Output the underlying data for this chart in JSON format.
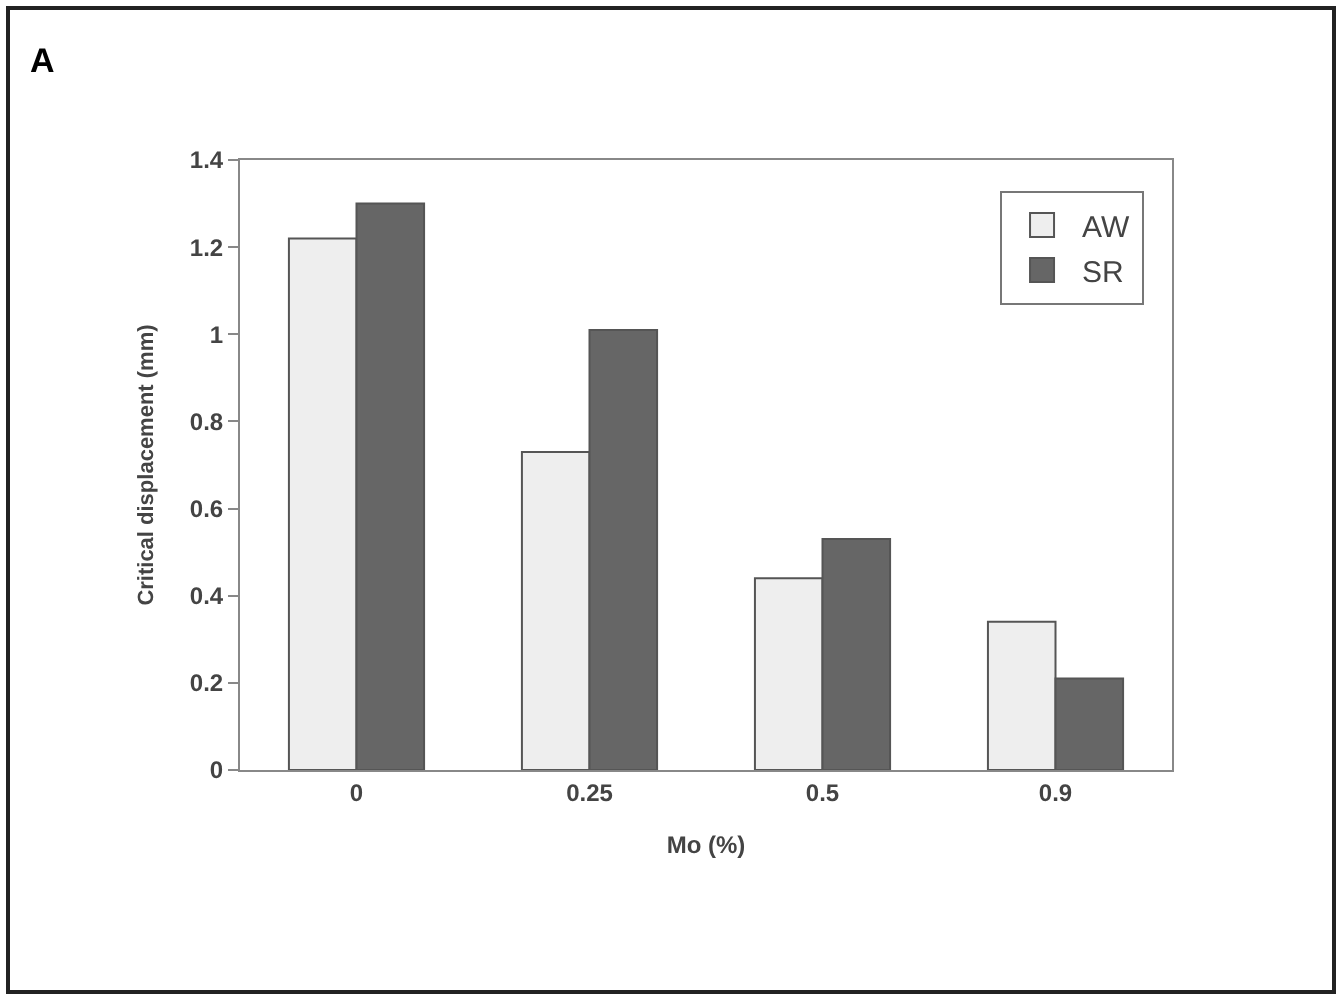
{
  "chart_data": {
    "type": "bar",
    "xlabel": "Mo (%)",
    "ylabel": "Critical displacement (mm)",
    "annotations": [
      "A"
    ],
    "categories": [
      "0",
      "0.25",
      "0.5",
      "0.9"
    ],
    "series": [
      {
        "name": "AW",
        "color": "#eeeeee",
        "values": [
          1.22,
          0.73,
          0.44,
          0.34
        ]
      },
      {
        "name": "SR",
        "color": "#666666",
        "values": [
          1.3,
          1.01,
          0.53,
          0.21
        ]
      }
    ],
    "ylim": [
      0,
      1.4
    ],
    "yticks": [
      0,
      0.2,
      0.4,
      0.6,
      0.8,
      1,
      1.2,
      1.4
    ],
    "legend": "top right"
  }
}
